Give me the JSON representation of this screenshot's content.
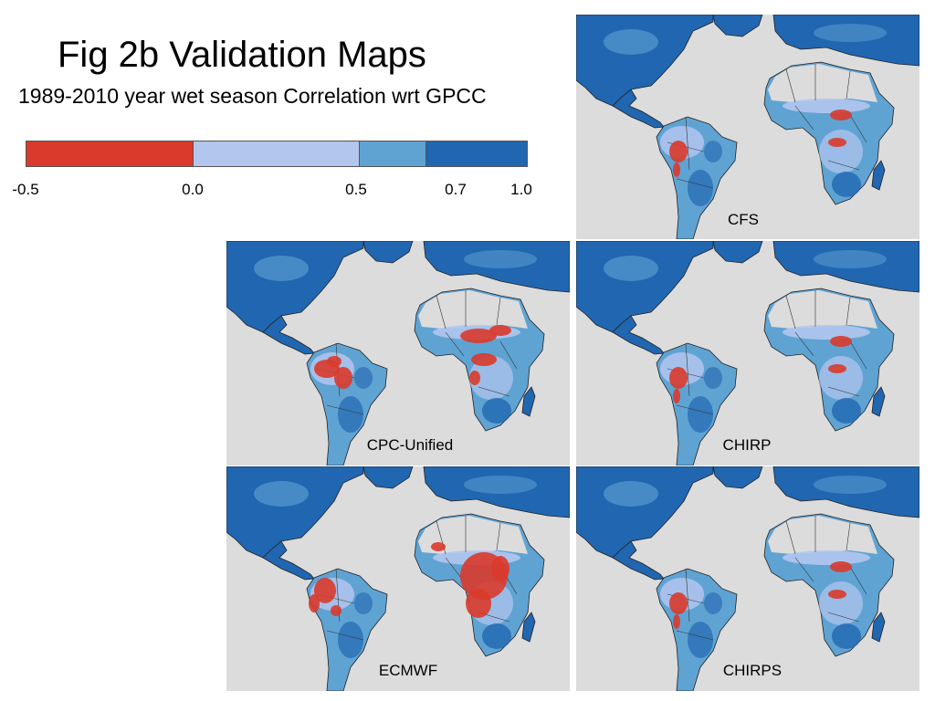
{
  "title": "Fig 2b Validation Maps",
  "subtitle": "1989-2010 year wet season Correlation  wrt GPCC",
  "legend": {
    "segments": [
      {
        "from": -0.5,
        "to": 0.0,
        "color": "#d93a2b"
      },
      {
        "from": 0.0,
        "to": 0.5,
        "color": "#b3c6ee"
      },
      {
        "from": 0.5,
        "to": 0.7,
        "color": "#5fa3d3"
      },
      {
        "from": 0.7,
        "to": 1.0,
        "color": "#2166b0"
      }
    ],
    "ticks": [
      "-0.5",
      "0.0",
      "0.5",
      "0.7",
      "1.0"
    ]
  },
  "colors": {
    "ocean": "#dcdcdc",
    "land_dark": "#2166b0",
    "land_mid": "#5fa3d3",
    "land_light": "#b3c6ee",
    "negative": "#d93a2b",
    "desert": "#dcdcdc"
  },
  "panels": [
    {
      "label": "CFS",
      "neg_level": 1
    },
    {
      "label": "CPC-Unified",
      "neg_level": 2
    },
    {
      "label": "CHIRP",
      "neg_level": 1
    },
    {
      "label": "ECMWF",
      "neg_level": 3
    },
    {
      "label": "CHIRPS",
      "neg_level": 1
    }
  ]
}
